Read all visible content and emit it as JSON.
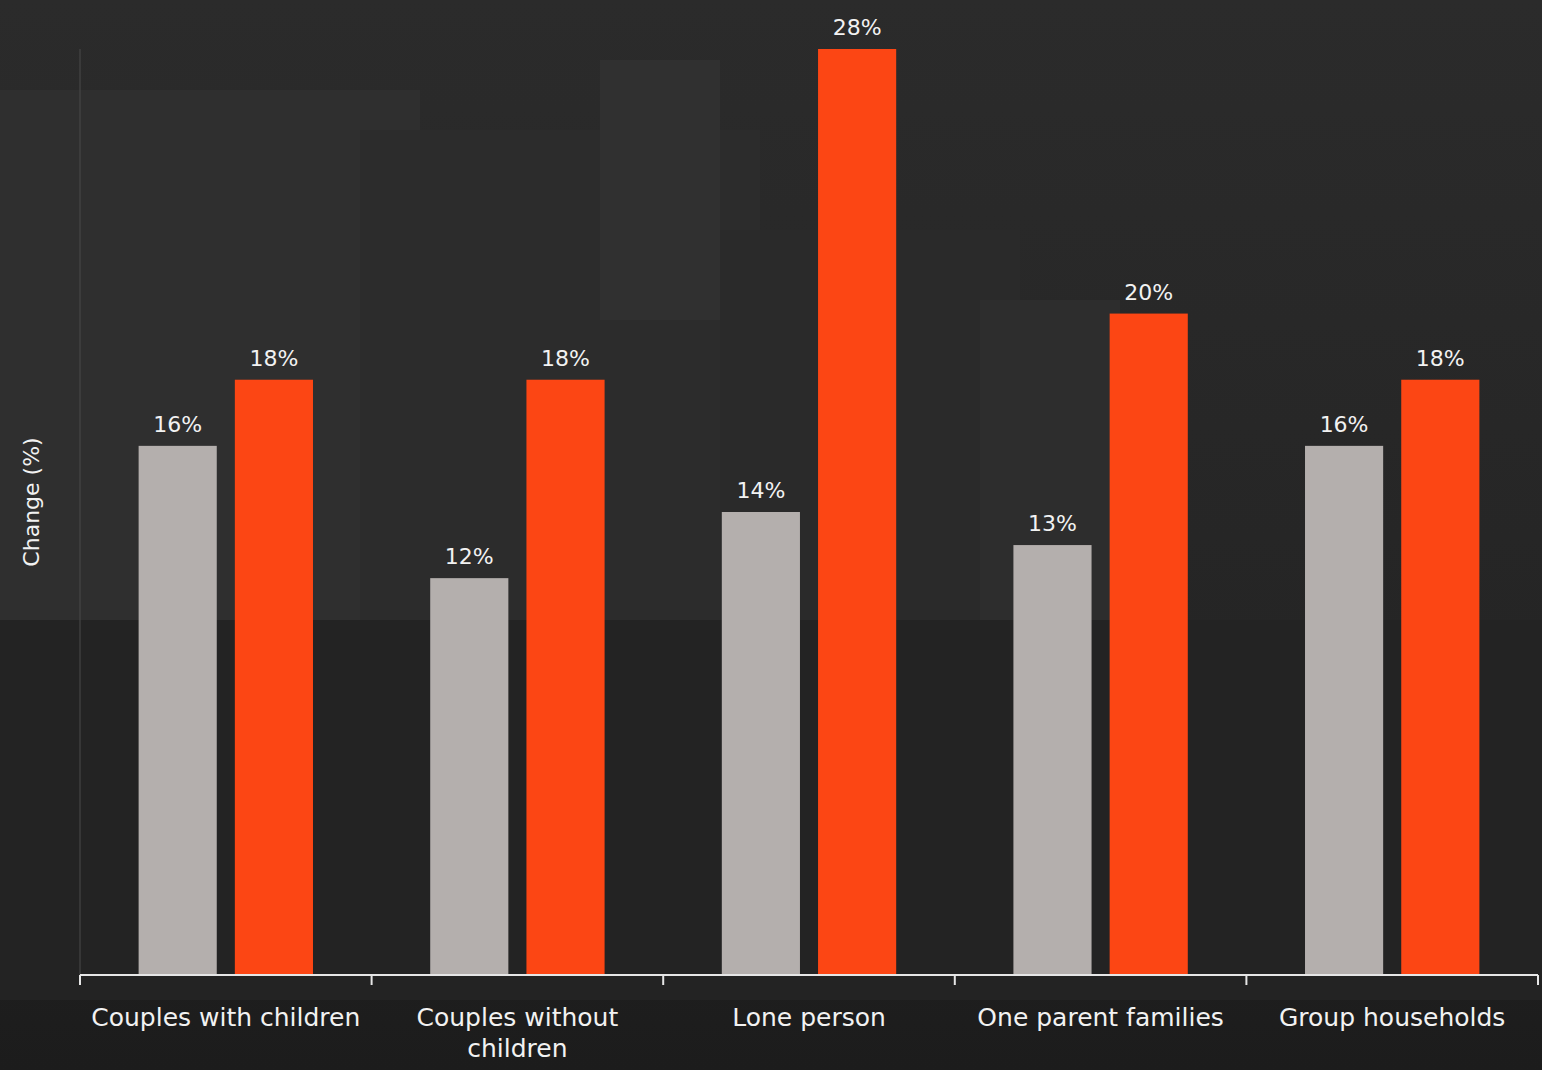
{
  "chart_data": {
    "type": "bar",
    "y_label": "Change (%)",
    "categories": [
      "Couples with children",
      "Couples without children",
      "Lone person",
      "One parent families",
      "Group households"
    ],
    "series": [
      {
        "color": "#b4afad",
        "values": [
          16,
          12,
          14,
          13,
          16
        ],
        "value_labels": [
          "16%",
          "12%",
          "14%",
          "13%",
          "16%"
        ]
      },
      {
        "color": "#fc4614",
        "values": [
          18,
          18,
          28,
          20,
          18
        ],
        "value_labels": [
          "18%",
          "18%",
          "28%",
          "20%",
          "18%"
        ]
      }
    ],
    "ylim": [
      0,
      28
    ],
    "data_labels": true,
    "tick_labels": "x"
  }
}
